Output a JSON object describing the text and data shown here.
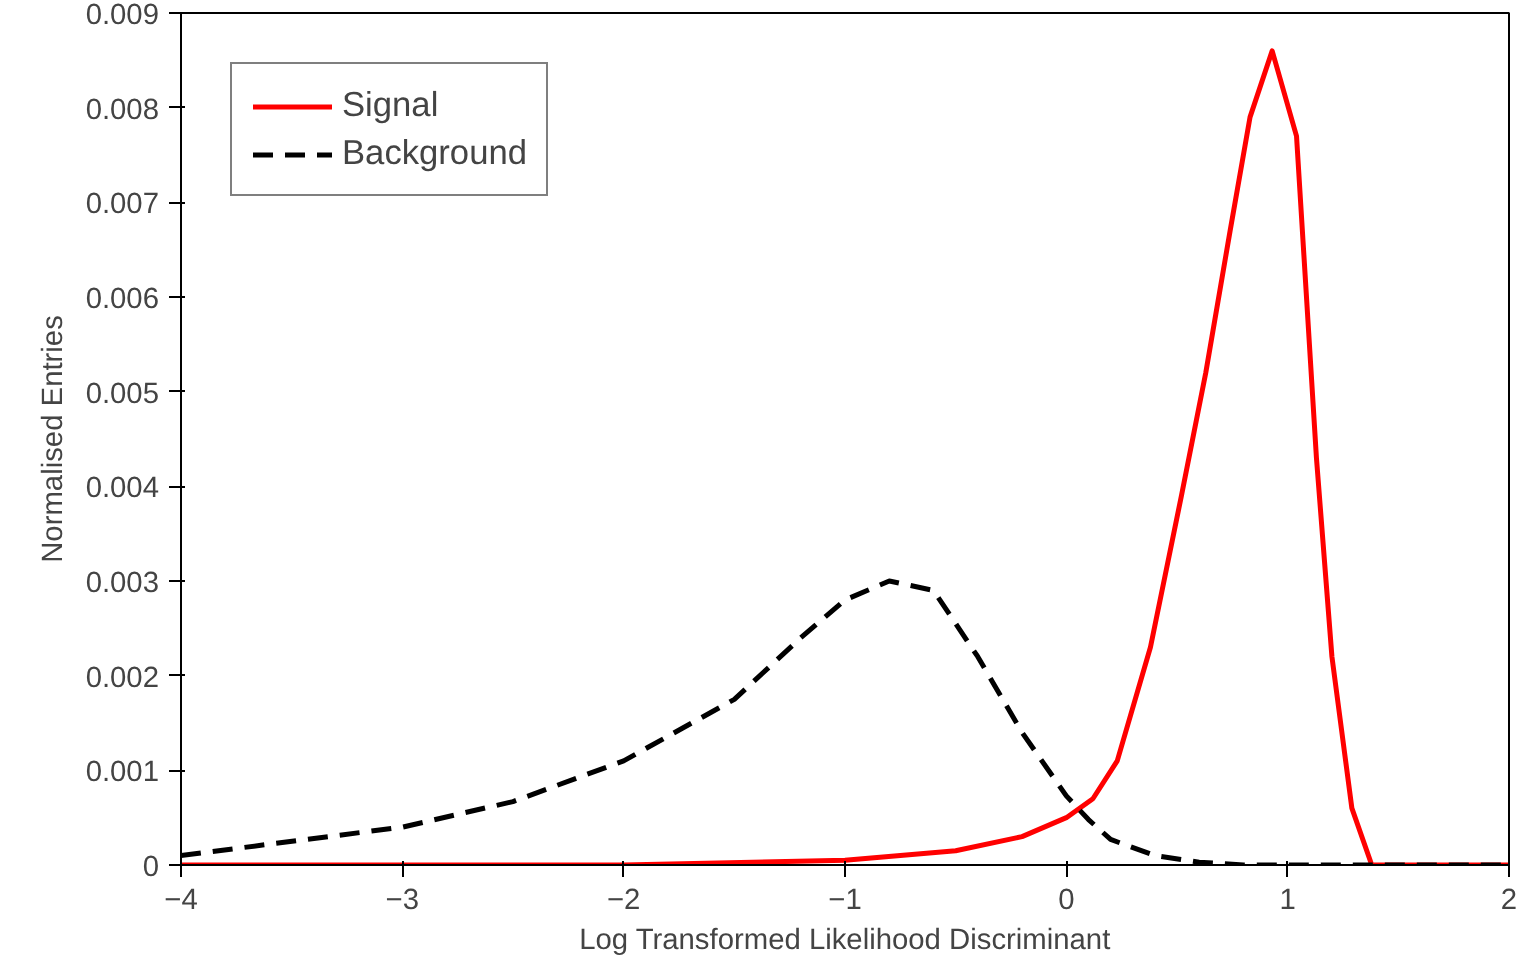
{
  "chart_data": {
    "type": "line",
    "xlabel": "Log Transformed Likelihood Discriminant",
    "ylabel": "Normalised Entries",
    "xlim": [
      -4,
      2
    ],
    "ylim": [
      0,
      0.009
    ],
    "xticks": [
      -4,
      -3,
      -2,
      -1,
      0,
      1,
      2
    ],
    "yticks": [
      0,
      0.001,
      0.002,
      0.003,
      0.004,
      0.005,
      0.006,
      0.007,
      0.008,
      0.009
    ],
    "grid": false,
    "legend": "top left",
    "marker": "none",
    "series": [
      {
        "name": "Signal",
        "color": "#ff0000",
        "line_style": "solid",
        "x": [
          -4,
          -3,
          -2,
          -1,
          -0.5,
          -0.2,
          0,
          0.12,
          0.23,
          0.38,
          0.52,
          0.63,
          0.74,
          0.83,
          0.93,
          1.04,
          1.13,
          1.2,
          1.29,
          1.38,
          2
        ],
        "values": [
          0,
          0,
          0,
          5e-05,
          0.00015,
          0.0003,
          0.0005,
          0.0007,
          0.0011,
          0.0023,
          0.0039,
          0.0052,
          0.0067,
          0.0079,
          0.0086,
          0.0077,
          0.0043,
          0.0022,
          0.0006,
          0,
          0
        ]
      },
      {
        "name": "Background",
        "color": "#000000",
        "line_style": "dashed",
        "x": [
          -4,
          -3,
          -2.5,
          -2,
          -1.5,
          -1.2,
          -1,
          -0.8,
          -0.6,
          -0.4,
          -0.2,
          0,
          0.1,
          0.2,
          0.4,
          0.6,
          0.8,
          2
        ],
        "values": [
          0.0001,
          0.0004,
          0.00067,
          0.0011,
          0.00175,
          0.0024,
          0.0028,
          0.003,
          0.0029,
          0.0022,
          0.0014,
          0.00073,
          0.00048,
          0.00027,
          0.0001,
          3e-05,
          0,
          0
        ]
      }
    ]
  }
}
